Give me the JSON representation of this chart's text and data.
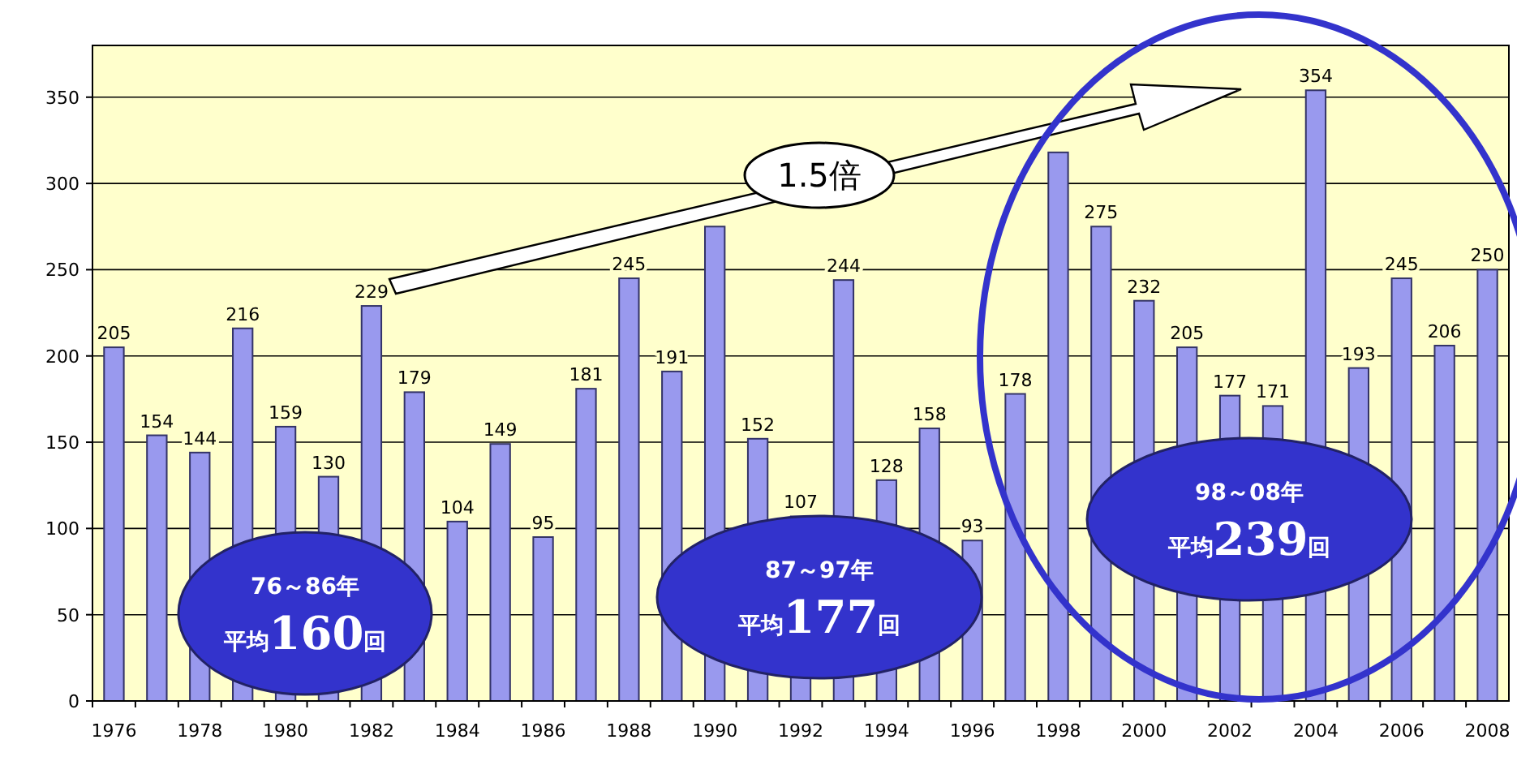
{
  "chart_data": {
    "type": "bar",
    "categories": [
      "1976",
      null,
      "1978",
      null,
      "1980",
      null,
      "1982",
      null,
      "1984",
      null,
      "1986",
      null,
      "1988",
      null,
      "1990",
      null,
      "1992",
      null,
      "1994",
      null,
      "1996",
      null,
      "1998",
      null,
      "2000",
      null,
      "2002",
      null,
      "2004",
      null,
      "2006",
      null,
      "2008"
    ],
    "series": [
      {
        "color": "#9999ee",
        "values": [
          205,
          154,
          144,
          216,
          159,
          130,
          229,
          179,
          104,
          149,
          95,
          181,
          245,
          191,
          275,
          152,
          107,
          244,
          128,
          158,
          93,
          178,
          318,
          275,
          232,
          205,
          177,
          171,
          354,
          193,
          245,
          206,
          250
        ],
        "value_labels": [
          "205",
          "154",
          "144",
          "216",
          "159",
          "130",
          "229",
          "179",
          "104",
          "149",
          "95",
          "181",
          "245",
          "191",
          null,
          "152",
          "107",
          "244",
          "128",
          "158",
          "93",
          "178",
          null,
          "275",
          "232",
          "205",
          "177",
          "171",
          "354",
          "193",
          "245",
          "206",
          "250"
        ]
      }
    ],
    "ylim": [
      0,
      380
    ],
    "yticks": [
      0,
      50,
      100,
      150,
      200,
      250,
      300,
      350
    ],
    "grid": "y",
    "annotations": [
      "1.5倍",
      "76～86年",
      "平均160回",
      "87～97年",
      "平均177回",
      "98～08年",
      "平均239回"
    ]
  }
}
